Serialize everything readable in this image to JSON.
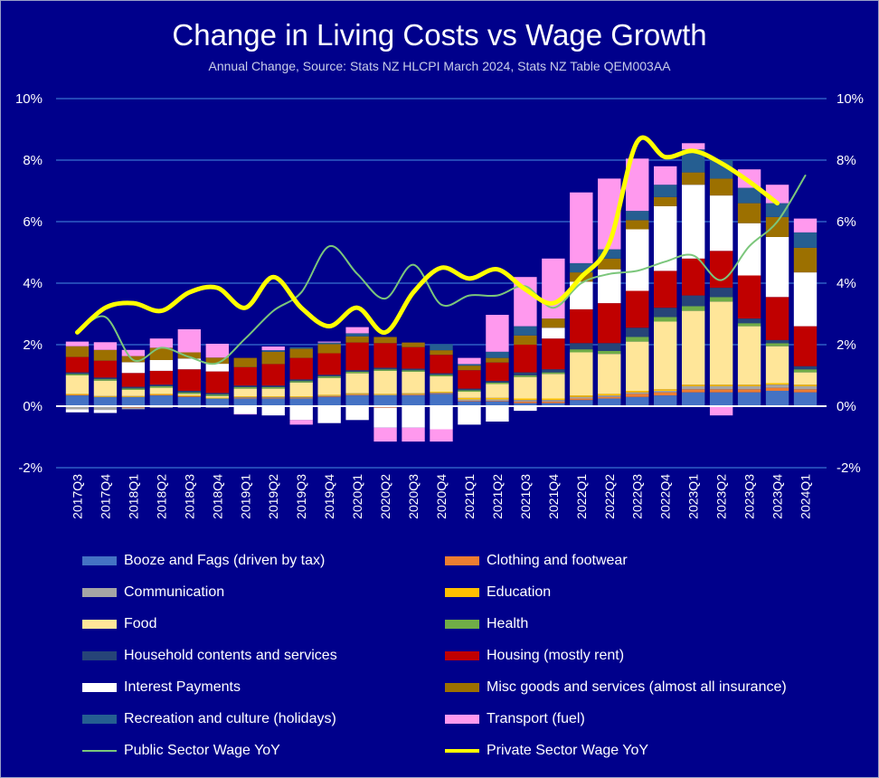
{
  "title": "Change in Living Costs vs Wage Growth",
  "subtitle": "Annual Change, Source: Stats NZ HLCPI March 2024, Stats NZ Table QEM003AA",
  "chart_data": {
    "type": "bar",
    "stacked": true,
    "ylim": [
      -2,
      10
    ],
    "y_ticks": [
      "-2%",
      "0%",
      "2%",
      "4%",
      "6%",
      "8%",
      "10%"
    ],
    "y_tick_values": [
      -2,
      0,
      2,
      4,
      6,
      8,
      10
    ],
    "grid": true,
    "legend_position": "bottom",
    "categories": [
      "2017Q3",
      "2017Q4",
      "2018Q1",
      "2018Q2",
      "2018Q3",
      "2018Q4",
      "2019Q1",
      "2019Q2",
      "2019Q3",
      "2019Q4",
      "2020Q1",
      "2020Q2",
      "2020Q3",
      "2020Q4",
      "2021Q1",
      "2021Q2",
      "2021Q3",
      "2021Q4",
      "2022Q1",
      "2022Q2",
      "2022Q3",
      "2022Q4",
      "2023Q1",
      "2023Q2",
      "2023Q3",
      "2023Q4",
      "2024Q1"
    ],
    "series": [
      {
        "name": "Booze and Fags (driven by tax)",
        "color": "#4472c4",
        "values": [
          0.35,
          0.3,
          0.3,
          0.35,
          0.3,
          0.25,
          0.25,
          0.25,
          0.25,
          0.3,
          0.35,
          0.35,
          0.35,
          0.4,
          0.15,
          0.15,
          0.1,
          0.1,
          0.2,
          0.25,
          0.3,
          0.35,
          0.45,
          0.45,
          0.45,
          0.5,
          0.45
        ]
      },
      {
        "name": "Clothing and footwear",
        "color": "#ed7d31",
        "values": [
          0.02,
          -0.02,
          -0.05,
          0.02,
          0.02,
          0.0,
          0.02,
          0.02,
          0.02,
          0.02,
          0.02,
          -0.05,
          0.02,
          0.02,
          0.02,
          0.02,
          0.05,
          0.05,
          0.05,
          0.05,
          0.1,
          0.1,
          0.1,
          0.1,
          0.1,
          0.1,
          0.1
        ]
      },
      {
        "name": "Communication",
        "color": "#a5a5a5",
        "values": [
          -0.1,
          -0.1,
          -0.05,
          -0.05,
          -0.05,
          -0.05,
          0.02,
          0.02,
          0.02,
          0.02,
          0.02,
          0.02,
          0.02,
          0.02,
          0.05,
          0.05,
          0.05,
          0.05,
          0.05,
          0.05,
          0.05,
          0.05,
          0.1,
          0.1,
          0.1,
          0.1,
          0.1
        ]
      },
      {
        "name": "Education",
        "color": "#ffc000",
        "values": [
          0.03,
          0.03,
          0.03,
          0.03,
          0.03,
          0.03,
          0.03,
          0.03,
          0.03,
          0.03,
          0.03,
          0.03,
          0.03,
          0.03,
          0.05,
          0.05,
          0.05,
          0.05,
          0.05,
          0.05,
          0.05,
          0.05,
          0.05,
          0.05,
          0.05,
          0.05,
          0.05
        ]
      },
      {
        "name": "Food",
        "color": "#ffe699",
        "values": [
          0.6,
          0.5,
          0.2,
          0.2,
          0.05,
          0.05,
          0.25,
          0.25,
          0.45,
          0.55,
          0.65,
          0.75,
          0.7,
          0.5,
          0.2,
          0.45,
          0.7,
          0.8,
          1.4,
          1.3,
          1.6,
          2.2,
          2.4,
          2.7,
          1.9,
          1.2,
          0.4
        ]
      },
      {
        "name": "Health",
        "color": "#70ad47",
        "values": [
          0.05,
          0.05,
          0.05,
          0.05,
          0.05,
          0.05,
          0.05,
          0.05,
          0.05,
          0.05,
          0.05,
          0.05,
          0.05,
          0.05,
          0.05,
          0.05,
          0.05,
          0.05,
          0.1,
          0.1,
          0.15,
          0.15,
          0.15,
          0.15,
          0.1,
          0.1,
          0.1
        ]
      },
      {
        "name": "Household contents and services",
        "color": "#264478",
        "values": [
          0.05,
          0.05,
          0.05,
          0.05,
          0.05,
          0.05,
          0.05,
          0.05,
          0.05,
          0.05,
          0.05,
          0.05,
          0.05,
          0.05,
          0.05,
          0.05,
          0.1,
          0.1,
          0.2,
          0.25,
          0.3,
          0.3,
          0.35,
          0.3,
          0.15,
          0.1,
          0.1
        ]
      },
      {
        "name": "Housing (mostly rent)",
        "color": "#c00000",
        "values": [
          0.5,
          0.55,
          0.45,
          0.45,
          0.7,
          0.7,
          0.6,
          0.7,
          0.7,
          0.7,
          0.9,
          0.8,
          0.7,
          0.6,
          0.6,
          0.6,
          0.9,
          1.0,
          1.1,
          1.3,
          1.2,
          1.2,
          1.2,
          1.2,
          1.4,
          1.4,
          1.3
        ]
      },
      {
        "name": "Interest Payments",
        "color": "#ffffff",
        "values": [
          -0.1,
          -0.1,
          0.35,
          0.35,
          0.35,
          0.25,
          -0.25,
          -0.3,
          -0.45,
          -0.55,
          -0.45,
          -0.65,
          -0.7,
          -0.75,
          -0.6,
          -0.5,
          -0.15,
          0.35,
          0.9,
          1.1,
          2.0,
          2.1,
          2.4,
          1.8,
          1.7,
          1.95,
          1.75
        ]
      },
      {
        "name": "Misc goods and services (almost all insurance)",
        "color": "#9c7000",
        "values": [
          0.35,
          0.35,
          0.2,
          0.4,
          0.2,
          0.2,
          0.3,
          0.4,
          0.3,
          0.3,
          0.2,
          0.2,
          0.15,
          0.15,
          0.15,
          0.15,
          0.3,
          0.3,
          0.3,
          0.35,
          0.3,
          0.3,
          0.4,
          0.55,
          0.65,
          0.65,
          0.8
        ]
      },
      {
        "name": "Recreation and culture (holidays)",
        "color": "#255e91",
        "values": [
          0.0,
          0.0,
          0.0,
          0.0,
          0.0,
          0.0,
          0.0,
          0.05,
          0.05,
          0.05,
          0.1,
          0.0,
          0.0,
          0.2,
          0.05,
          0.2,
          0.3,
          0.0,
          0.3,
          0.3,
          0.3,
          0.4,
          0.75,
          0.6,
          0.5,
          0.45,
          0.5
        ]
      },
      {
        "name": "Transport (fuel)",
        "color": "#ff99ee",
        "values": [
          0.15,
          0.25,
          0.2,
          0.3,
          0.75,
          0.45,
          -0.02,
          0.12,
          -0.15,
          0.03,
          0.2,
          -0.45,
          -0.45,
          -0.4,
          0.2,
          1.2,
          1.6,
          1.95,
          2.3,
          2.3,
          1.7,
          0.6,
          0.2,
          -0.3,
          0.6,
          0.6,
          0.45
        ]
      }
    ],
    "lines": [
      {
        "name": "Public Sector Wage YoY",
        "color": "#7bc67b",
        "values": [
          2.4,
          2.9,
          1.5,
          1.9,
          1.6,
          1.4,
          2.2,
          3.1,
          3.7,
          5.2,
          4.3,
          3.5,
          4.6,
          3.3,
          3.6,
          3.6,
          3.9,
          3.2,
          4.0,
          4.3,
          4.4,
          4.7,
          4.9,
          4.1,
          5.2,
          6.0,
          7.5
        ]
      },
      {
        "name": "Private Sector Wage YoY",
        "color": "#ffff00",
        "values": [
          2.4,
          3.2,
          3.35,
          3.1,
          3.7,
          3.85,
          3.2,
          4.2,
          3.2,
          2.6,
          3.2,
          2.4,
          3.7,
          4.5,
          4.15,
          4.45,
          3.8,
          3.35,
          4.2,
          5.3,
          8.6,
          8.1,
          8.3,
          7.9,
          7.3,
          6.6,
          null
        ]
      }
    ]
  }
}
